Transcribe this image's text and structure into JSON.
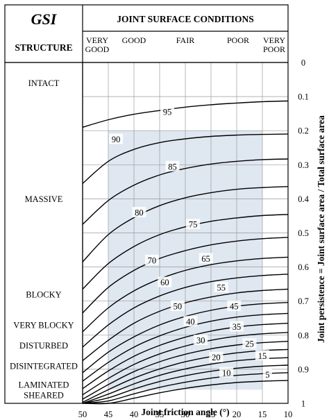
{
  "header": {
    "gsi": "GSI",
    "structure": "STRUCTURE",
    "conditions_title": "JOINT SURFACE CONDITIONS",
    "conditions": [
      {
        "lines": [
          "VERY",
          "GOOD"
        ]
      },
      {
        "lines": [
          "GOOD"
        ]
      },
      {
        "lines": [
          "FAIR"
        ]
      },
      {
        "lines": [
          "POOR"
        ]
      },
      {
        "lines": [
          "VERY",
          "POOR"
        ]
      }
    ]
  },
  "structures": [
    {
      "lines": [
        "INTACT"
      ],
      "y": 0.06
    },
    {
      "lines": [
        "MASSIVE"
      ],
      "y": 0.4
    },
    {
      "lines": [
        "BLOCKY"
      ],
      "y": 0.68
    },
    {
      "lines": [
        "VERY BLOCKY"
      ],
      "y": 0.77
    },
    {
      "lines": [
        "DISTURBED"
      ],
      "y": 0.83
    },
    {
      "lines": [
        "DISINTEGRATED"
      ],
      "y": 0.89
    },
    {
      "lines": [
        "LAMINATED",
        "SHEARED"
      ],
      "y": 0.96
    }
  ],
  "chart_data": {
    "type": "line",
    "xlabel": "Joint friction angle (°)",
    "ylabel": "Joint persistence = Joint surface area / Total surface area",
    "xlim": [
      50,
      10
    ],
    "ylim": [
      0,
      1
    ],
    "x_ticks": [
      50,
      45,
      40,
      35,
      30,
      25,
      20,
      15,
      10
    ],
    "y_ticks": [
      "0",
      "0.1",
      "0.2",
      "0.3",
      "0.4",
      "0.5",
      "0.6",
      "0.7",
      "0.8",
      "0.9",
      "1"
    ],
    "grid": true,
    "shaded_region": {
      "x": [
        45,
        15
      ],
      "y": [
        0.2,
        0.96
      ]
    },
    "contours": [
      {
        "gsi": "95",
        "label_at": [
          33.5,
          0.145
        ],
        "points": [
          [
            50,
            0.19
          ],
          [
            45,
            0.168
          ],
          [
            40,
            0.152
          ],
          [
            35,
            0.141
          ],
          [
            30,
            0.131
          ],
          [
            25,
            0.124
          ],
          [
            20,
            0.119
          ],
          [
            15,
            0.115
          ],
          [
            10,
            0.113
          ]
        ]
      },
      {
        "gsi": "90",
        "label_at": [
          43.5,
          0.225
        ],
        "points": [
          [
            50,
            0.355
          ],
          [
            45,
            0.29
          ],
          [
            40,
            0.255
          ],
          [
            35,
            0.235
          ],
          [
            30,
            0.224
          ],
          [
            25,
            0.217
          ],
          [
            20,
            0.213
          ],
          [
            15,
            0.211
          ],
          [
            10,
            0.21
          ]
        ]
      },
      {
        "gsi": "85",
        "label_at": [
          32.5,
          0.305
        ],
        "points": [
          [
            50,
            0.475
          ],
          [
            45,
            0.405
          ],
          [
            40,
            0.36
          ],
          [
            35,
            0.33
          ],
          [
            30,
            0.311
          ],
          [
            25,
            0.298
          ],
          [
            20,
            0.29
          ],
          [
            15,
            0.285
          ],
          [
            10,
            0.283
          ]
        ]
      },
      {
        "gsi": "80",
        "label_at": [
          39,
          0.44
        ],
        "points": [
          [
            50,
            0.585
          ],
          [
            45,
            0.505
          ],
          [
            40,
            0.455
          ],
          [
            35,
            0.42
          ],
          [
            30,
            0.397
          ],
          [
            25,
            0.382
          ],
          [
            20,
            0.372
          ],
          [
            15,
            0.367
          ],
          [
            10,
            0.364
          ]
        ]
      },
      {
        "gsi": "75",
        "label_at": [
          28.5,
          0.475
        ],
        "points": [
          [
            50,
            0.665
          ],
          [
            45,
            0.59
          ],
          [
            40,
            0.54
          ],
          [
            35,
            0.505
          ],
          [
            30,
            0.482
          ],
          [
            25,
            0.466
          ],
          [
            20,
            0.456
          ],
          [
            15,
            0.449
          ],
          [
            10,
            0.446
          ]
        ]
      },
      {
        "gsi": "70",
        "label_at": [
          36.5,
          0.58
        ],
        "points": [
          [
            50,
            0.735
          ],
          [
            45,
            0.66
          ],
          [
            40,
            0.61
          ],
          [
            35,
            0.575
          ],
          [
            30,
            0.552
          ],
          [
            25,
            0.535
          ],
          [
            20,
            0.524
          ],
          [
            15,
            0.517
          ],
          [
            10,
            0.513
          ]
        ]
      },
      {
        "gsi": "65",
        "label_at": [
          26,
          0.575
        ],
        "points": [
          [
            50,
            0.79
          ],
          [
            45,
            0.72
          ],
          [
            40,
            0.67
          ],
          [
            35,
            0.635
          ],
          [
            30,
            0.61
          ],
          [
            25,
            0.593
          ],
          [
            20,
            0.582
          ],
          [
            15,
            0.575
          ],
          [
            10,
            0.571
          ]
        ]
      },
      {
        "gsi": "60",
        "label_at": [
          34,
          0.645
        ],
        "points": [
          [
            50,
            0.835
          ],
          [
            45,
            0.77
          ],
          [
            40,
            0.72
          ],
          [
            35,
            0.685
          ],
          [
            30,
            0.66
          ],
          [
            25,
            0.643
          ],
          [
            20,
            0.632
          ],
          [
            15,
            0.625
          ],
          [
            10,
            0.621
          ]
        ]
      },
      {
        "gsi": "55",
        "label_at": [
          23,
          0.66
        ],
        "points": [
          [
            50,
            0.875
          ],
          [
            45,
            0.815
          ],
          [
            40,
            0.765
          ],
          [
            35,
            0.73
          ],
          [
            30,
            0.705
          ],
          [
            25,
            0.688
          ],
          [
            20,
            0.676
          ],
          [
            15,
            0.669
          ],
          [
            10,
            0.665
          ]
        ]
      },
      {
        "gsi": "50",
        "label_at": [
          31.5,
          0.715
        ],
        "points": [
          [
            50,
            0.91
          ],
          [
            45,
            0.85
          ],
          [
            40,
            0.805
          ],
          [
            35,
            0.77
          ],
          [
            30,
            0.745
          ],
          [
            25,
            0.727
          ],
          [
            20,
            0.715
          ],
          [
            15,
            0.708
          ],
          [
            10,
            0.704
          ]
        ]
      },
      {
        "gsi": "45",
        "label_at": [
          20.5,
          0.715
        ],
        "points": [
          [
            50,
            0.935
          ],
          [
            45,
            0.88
          ],
          [
            40,
            0.835
          ],
          [
            35,
            0.802
          ],
          [
            30,
            0.777
          ],
          [
            25,
            0.759
          ],
          [
            20,
            0.747
          ],
          [
            15,
            0.74
          ],
          [
            10,
            0.736
          ]
        ]
      },
      {
        "gsi": "40",
        "label_at": [
          29,
          0.76
        ],
        "points": [
          [
            50,
            0.957
          ],
          [
            45,
            0.905
          ],
          [
            40,
            0.862
          ],
          [
            35,
            0.83
          ],
          [
            30,
            0.806
          ],
          [
            25,
            0.788
          ],
          [
            20,
            0.776
          ],
          [
            15,
            0.769
          ],
          [
            10,
            0.765
          ]
        ]
      },
      {
        "gsi": "35",
        "label_at": [
          20,
          0.775
        ],
        "points": [
          [
            50,
            0.975
          ],
          [
            45,
            0.927
          ],
          [
            40,
            0.886
          ],
          [
            35,
            0.855
          ],
          [
            30,
            0.832
          ],
          [
            25,
            0.815
          ],
          [
            20,
            0.803
          ],
          [
            15,
            0.796
          ],
          [
            10,
            0.792
          ]
        ]
      },
      {
        "gsi": "30",
        "label_at": [
          27,
          0.815
        ],
        "points": [
          [
            50,
            0.988
          ],
          [
            45,
            0.945
          ],
          [
            40,
            0.907
          ],
          [
            35,
            0.878
          ],
          [
            30,
            0.856
          ],
          [
            25,
            0.84
          ],
          [
            20,
            0.829
          ],
          [
            15,
            0.822
          ],
          [
            10,
            0.818
          ]
        ]
      },
      {
        "gsi": "25",
        "label_at": [
          17.5,
          0.825
        ],
        "points": [
          [
            50,
            0.997
          ],
          [
            45,
            0.96
          ],
          [
            40,
            0.926
          ],
          [
            35,
            0.899
          ],
          [
            30,
            0.878
          ],
          [
            25,
            0.863
          ],
          [
            20,
            0.852
          ],
          [
            15,
            0.845
          ],
          [
            10,
            0.842
          ]
        ]
      },
      {
        "gsi": "20",
        "label_at": [
          24,
          0.865
        ],
        "points": [
          [
            50,
            1.0
          ],
          [
            45,
            0.973
          ],
          [
            40,
            0.943
          ],
          [
            35,
            0.918
          ],
          [
            30,
            0.899
          ],
          [
            25,
            0.885
          ],
          [
            20,
            0.875
          ],
          [
            15,
            0.869
          ],
          [
            10,
            0.866
          ]
        ]
      },
      {
        "gsi": "15",
        "label_at": [
          15,
          0.86
        ],
        "points": [
          [
            50,
            1.0
          ],
          [
            45,
            0.984
          ],
          [
            40,
            0.958
          ],
          [
            35,
            0.936
          ],
          [
            30,
            0.919
          ],
          [
            25,
            0.906
          ],
          [
            20,
            0.897
          ],
          [
            15,
            0.891
          ],
          [
            10,
            0.888
          ]
        ]
      },
      {
        "gsi": "10",
        "label_at": [
          22,
          0.91
        ],
        "points": [
          [
            50,
            1.0
          ],
          [
            45,
            0.993
          ],
          [
            40,
            0.972
          ],
          [
            35,
            0.953
          ],
          [
            30,
            0.938
          ],
          [
            25,
            0.926
          ],
          [
            20,
            0.918
          ],
          [
            15,
            0.913
          ],
          [
            10,
            0.91
          ]
        ]
      },
      {
        "gsi": "5",
        "label_at": [
          14,
          0.915
        ],
        "points": [
          [
            50,
            1.0
          ],
          [
            45,
            1.0
          ],
          [
            40,
            0.985
          ],
          [
            35,
            0.969
          ],
          [
            30,
            0.956
          ],
          [
            25,
            0.946
          ],
          [
            20,
            0.939
          ],
          [
            15,
            0.935
          ],
          [
            10,
            0.933
          ]
        ]
      }
    ]
  }
}
